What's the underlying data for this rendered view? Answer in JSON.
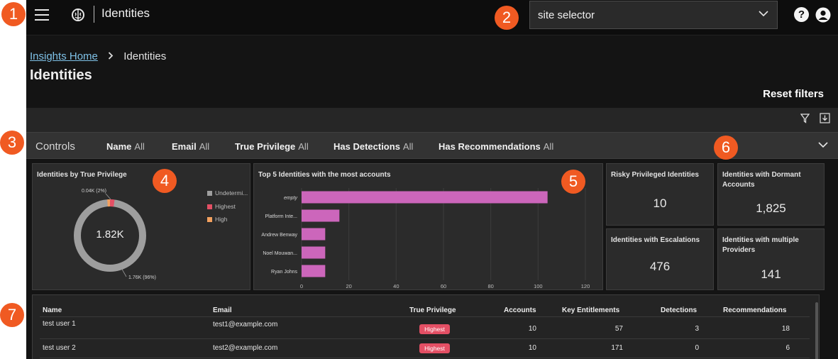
{
  "topbar": {
    "title": "Identities",
    "site_selector": "site selector",
    "help_symbol": "?"
  },
  "breadcrumb": {
    "home": "Insights Home",
    "current": "Identities"
  },
  "page": {
    "title": "Identities",
    "reset_filters": "Reset filters"
  },
  "controls": {
    "label": "Controls",
    "filters": [
      {
        "name": "Name",
        "value": "All"
      },
      {
        "name": "Email",
        "value": "All"
      },
      {
        "name": "True Privilege",
        "value": "All"
      },
      {
        "name": "Has Detections",
        "value": "All"
      },
      {
        "name": "Has Recommendations",
        "value": "All"
      }
    ]
  },
  "donut": {
    "title": "Identities by True Privilege",
    "center": "1.82K",
    "label_top": "0.04K (2%)",
    "label_bottom": "1.76K (96%)",
    "legend": [
      {
        "label": "Undetermi...",
        "color": "#9e9e9e"
      },
      {
        "label": "Highest",
        "color": "#e34f64"
      },
      {
        "label": "High",
        "color": "#f3a15f"
      }
    ]
  },
  "chart_data": {
    "type": "bar",
    "orientation": "horizontal",
    "title": "Top 5 Identities with the most accounts",
    "categories": [
      "empty",
      "Platform Inte...",
      "Andrew Benway",
      "Noel Mouwan...",
      "Ryan Johns"
    ],
    "values": [
      104,
      16,
      10,
      10,
      10
    ],
    "xlim": [
      0,
      120
    ],
    "xticks": [
      0,
      20,
      40,
      60,
      80,
      100,
      120
    ],
    "bar_color": "#cc66bb",
    "grid": true
  },
  "kpis": [
    {
      "title": "Risky Privileged Identities",
      "value": "10"
    },
    {
      "title": "Identities with Dormant Accounts",
      "value": "1,825"
    },
    {
      "title": "Identities with Escalations",
      "value": "476"
    },
    {
      "title": "Identities with multiple Providers",
      "value": "141"
    }
  ],
  "table": {
    "headers": [
      "Name",
      "Email",
      "True Privilege",
      "Accounts",
      "Key Entitlements",
      "Detections",
      "Recommendations"
    ],
    "rows": [
      {
        "name": "test user 1",
        "email": "test1@example.com",
        "privilege": "Highest",
        "accounts": "10",
        "key_entitlements": "57",
        "detections": "3",
        "recommendations": "18"
      },
      {
        "name": "test user 2",
        "email": "test2@example.com",
        "privilege": "Highest",
        "accounts": "10",
        "key_entitlements": "171",
        "detections": "0",
        "recommendations": "6"
      }
    ]
  },
  "callouts": [
    "1",
    "2",
    "3",
    "4",
    "5",
    "6",
    "7"
  ]
}
